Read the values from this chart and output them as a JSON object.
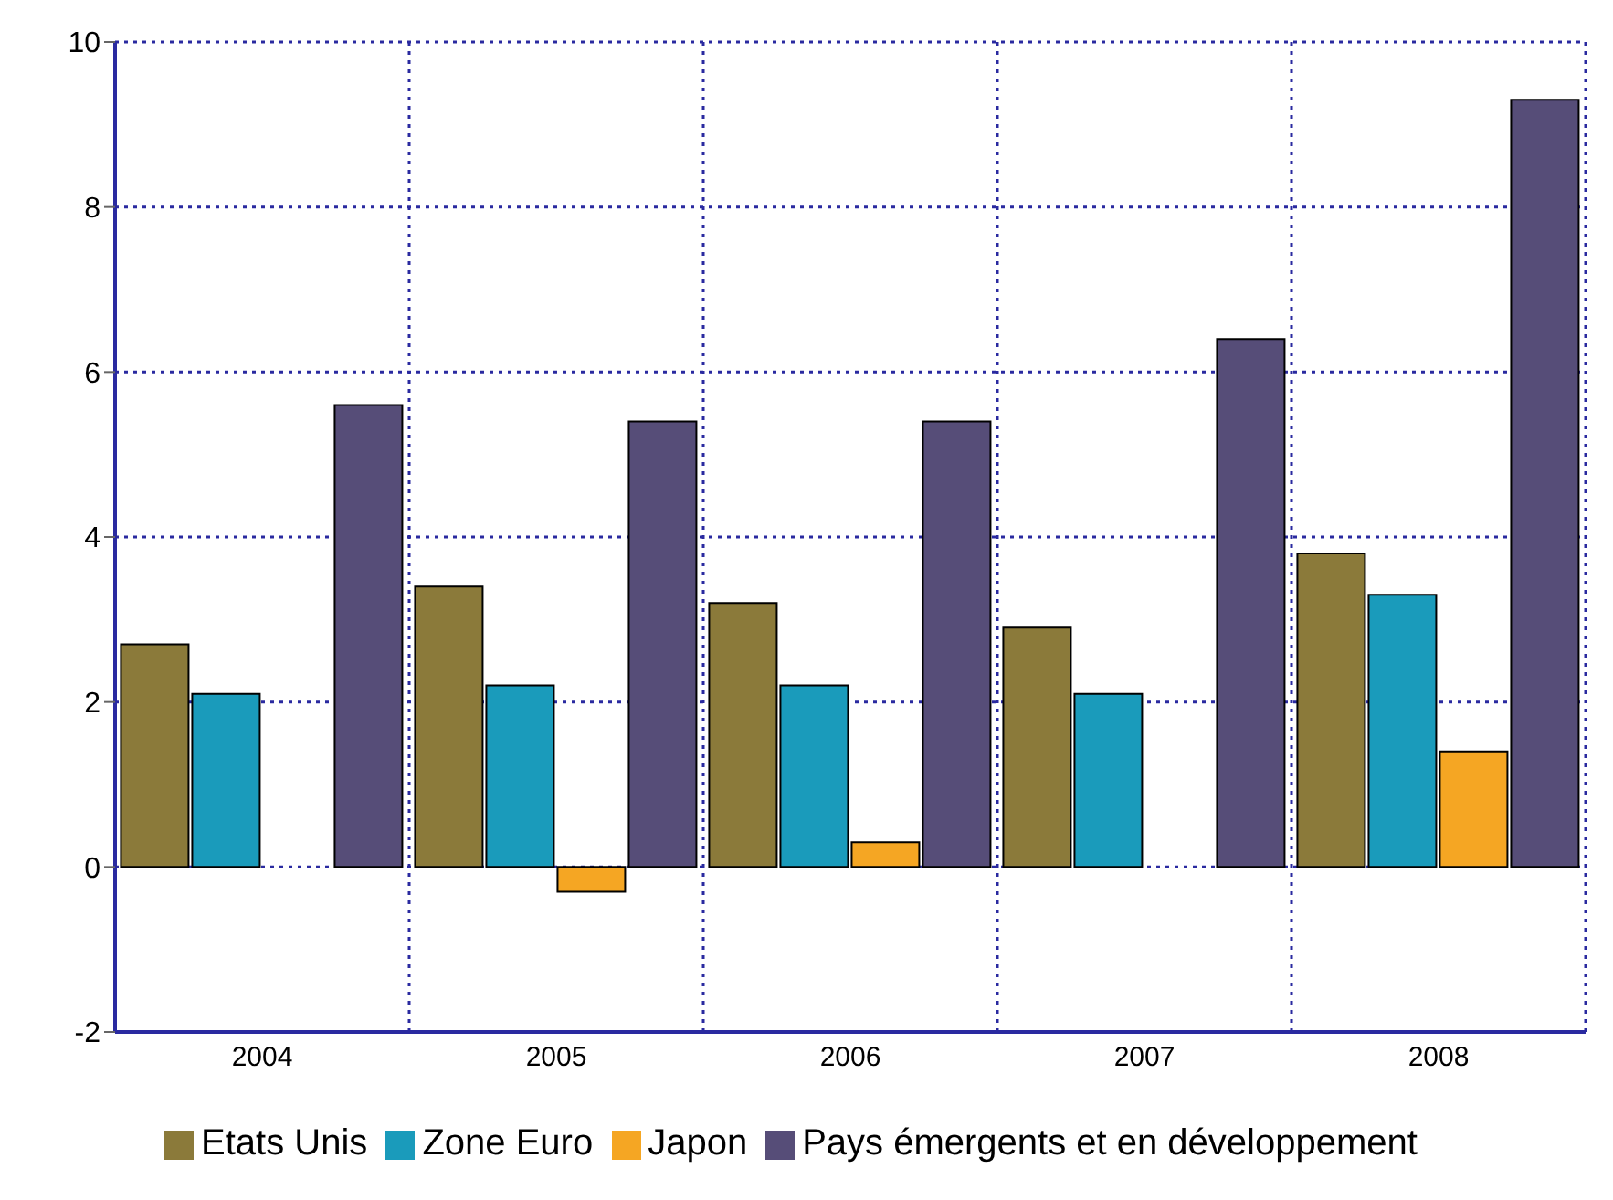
{
  "chart_data": {
    "type": "bar",
    "categories": [
      "2004",
      "2005",
      "2006",
      "2007",
      "2008"
    ],
    "series": [
      {
        "name": "Etats Unis",
        "color": "#8b7a3a",
        "values": [
          2.7,
          3.4,
          3.2,
          2.9,
          3.8
        ]
      },
      {
        "name": "Zone Euro",
        "color": "#1a9bbb",
        "values": [
          2.1,
          2.2,
          2.2,
          2.1,
          3.3
        ]
      },
      {
        "name": "Japon",
        "color": "#f5a623",
        "values": [
          0,
          -0.3,
          0.3,
          0,
          1.4
        ]
      },
      {
        "name": "Pays émergents et en développement",
        "color": "#564d78",
        "values": [
          5.6,
          5.4,
          5.4,
          6.4,
          9.3
        ]
      }
    ],
    "ylim": [
      -2,
      10
    ],
    "yticks": [
      -2,
      0,
      2,
      4,
      6,
      8,
      10
    ],
    "grid": true,
    "legend": "bottom"
  }
}
